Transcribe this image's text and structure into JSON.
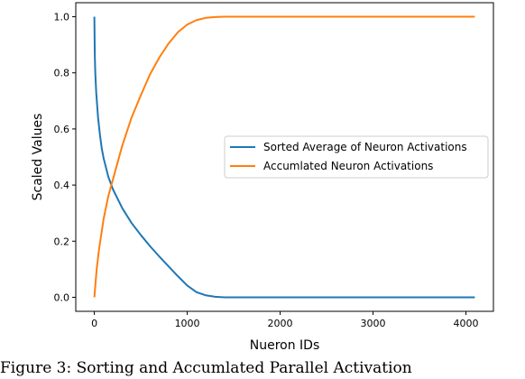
{
  "chart_data": {
    "type": "line",
    "title": "",
    "xlabel": "Nueron IDs",
    "ylabel": "Scaled Values",
    "xlim": [
      -200,
      4296
    ],
    "ylim": [
      -0.05,
      1.05
    ],
    "xticks": [
      0,
      1000,
      2000,
      3000,
      4000
    ],
    "yticks": [
      0.0,
      0.2,
      0.4,
      0.6,
      0.8,
      1.0
    ],
    "xtick_labels": [
      "0",
      "1000",
      "2000",
      "3000",
      "4000"
    ],
    "ytick_labels": [
      "0.0",
      "0.2",
      "0.4",
      "0.6",
      "0.8",
      "1.0"
    ],
    "grid": false,
    "legend_position": "center-right",
    "series": [
      {
        "name": "Sorted Average of Neuron Activations",
        "color": "#1f77b4",
        "x": [
          0,
          5,
          10,
          20,
          40,
          60,
          80,
          100,
          150,
          200,
          300,
          400,
          500,
          600,
          700,
          800,
          900,
          1000,
          1100,
          1200,
          1300,
          1400,
          1500,
          2000,
          2500,
          3000,
          3500,
          4096
        ],
        "y": [
          1.0,
          0.86,
          0.8,
          0.73,
          0.64,
          0.58,
          0.53,
          0.495,
          0.43,
          0.385,
          0.318,
          0.265,
          0.222,
          0.182,
          0.145,
          0.11,
          0.075,
          0.042,
          0.018,
          0.007,
          0.002,
          0.0,
          0.0,
          0.0,
          0.0,
          0.0,
          0.0,
          0.0
        ]
      },
      {
        "name": "Accumlated Neuron Activations",
        "color": "#ff7f0e",
        "x": [
          0,
          25,
          50,
          100,
          150,
          200,
          300,
          400,
          500,
          600,
          700,
          800,
          900,
          1000,
          1100,
          1200,
          1300,
          1400,
          1500,
          2000,
          2500,
          3000,
          3500,
          4096
        ],
        "y": [
          0.0,
          0.1,
          0.17,
          0.28,
          0.36,
          0.42,
          0.54,
          0.64,
          0.72,
          0.795,
          0.855,
          0.905,
          0.945,
          0.972,
          0.988,
          0.996,
          0.999,
          1.0,
          1.0,
          1.0,
          1.0,
          1.0,
          1.0,
          1.0
        ]
      }
    ]
  },
  "caption": "Figure 3:  Sorting and Accumlated Parallel Activation"
}
